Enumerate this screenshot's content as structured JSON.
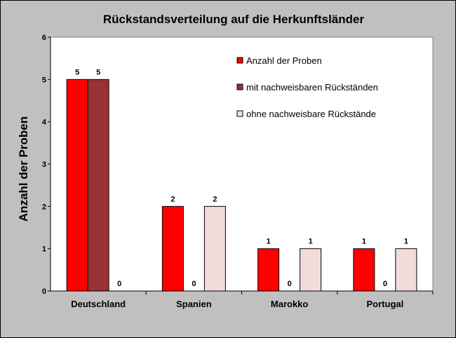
{
  "chart_data": {
    "type": "bar",
    "title": "Rückstandsverteilung  auf die Herkunftsländer",
    "xlabel": "",
    "ylabel": "Anzahl der Proben",
    "categories": [
      "Deutschland",
      "Spanien",
      "Marokko",
      "Portugal"
    ],
    "series": [
      {
        "name": "Anzahl der Proben",
        "values": [
          5,
          2,
          1,
          1
        ],
        "color": "#ff0000"
      },
      {
        "name": "mit nachweisbaren Rückständen",
        "values": [
          5,
          0,
          0,
          0
        ],
        "color": "#993333"
      },
      {
        "name": "ohne nachweisbare Rückstände",
        "values": [
          0,
          2,
          1,
          1
        ],
        "color": "#f2dcdb"
      }
    ],
    "ylim": [
      0,
      6
    ],
    "yticks": [
      "0",
      "1",
      "2",
      "3",
      "4",
      "5",
      "6"
    ],
    "grid": false,
    "legend_position": "top-right",
    "plot_background": "#ffffff",
    "chart_background": "#c0c0c0"
  }
}
